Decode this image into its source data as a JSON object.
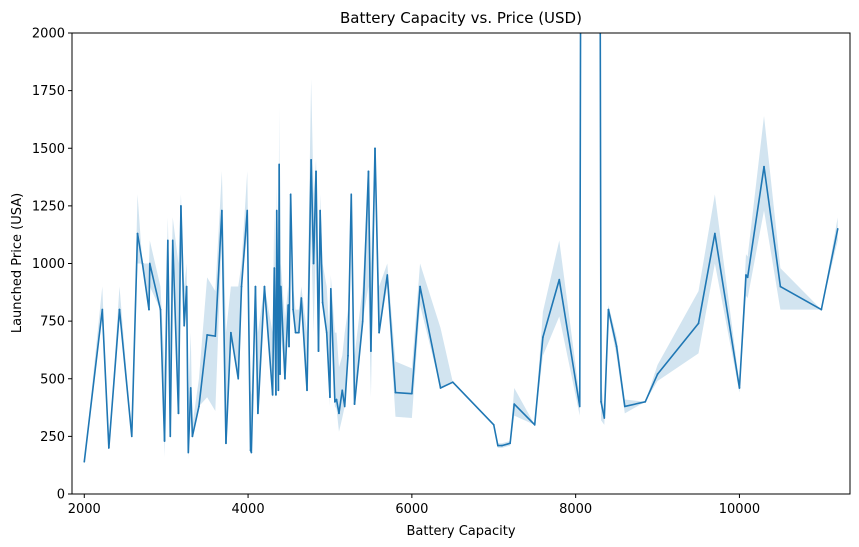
{
  "chart_data": {
    "type": "line",
    "title": "Battery Capacity vs. Price (USD)",
    "xlabel": "Battery Capacity",
    "ylabel": "Launched Price (USA)",
    "xlim": [
      1850,
      11350
    ],
    "ylim": [
      0,
      2000
    ],
    "xticks": [
      2000,
      4000,
      6000,
      8000,
      10000
    ],
    "yticks": [
      0,
      250,
      500,
      750,
      1000,
      1250,
      1500,
      1750,
      2000
    ],
    "grid": false,
    "legend": "none",
    "colors": {
      "line": "#1f77b4",
      "band": "#1f77b4"
    },
    "series": [
      {
        "values": [
          [
            2000,
            140
          ],
          [
            2220,
            800
          ],
          [
            2300,
            200
          ],
          [
            2430,
            800
          ],
          [
            2580,
            250
          ],
          [
            2650,
            1130
          ],
          [
            2710,
            1000
          ],
          [
            2790,
            800
          ],
          [
            2800,
            1000
          ],
          [
            2930,
            800
          ],
          [
            2980,
            230
          ],
          [
            3020,
            1100
          ],
          [
            3050,
            250
          ],
          [
            3080,
            1100
          ],
          [
            3150,
            350
          ],
          [
            3180,
            1250
          ],
          [
            3220,
            730
          ],
          [
            3250,
            900
          ],
          [
            3270,
            180
          ],
          [
            3300,
            460
          ],
          [
            3320,
            250
          ],
          [
            3400,
            380
          ],
          [
            3500,
            690
          ],
          [
            3600,
            685
          ],
          [
            3680,
            1230
          ],
          [
            3730,
            220
          ],
          [
            3790,
            700
          ],
          [
            3880,
            500
          ],
          [
            3920,
            900
          ],
          [
            3990,
            1230
          ],
          [
            4030,
            190
          ],
          [
            4040,
            180
          ],
          [
            4090,
            900
          ],
          [
            4120,
            350
          ],
          [
            4200,
            900
          ],
          [
            4300,
            430
          ],
          [
            4320,
            980
          ],
          [
            4340,
            430
          ],
          [
            4350,
            1230
          ],
          [
            4370,
            450
          ],
          [
            4380,
            1430
          ],
          [
            4390,
            520
          ],
          [
            4400,
            900
          ],
          [
            4450,
            500
          ],
          [
            4490,
            820
          ],
          [
            4500,
            640
          ],
          [
            4520,
            1300
          ],
          [
            4550,
            800
          ],
          [
            4580,
            700
          ],
          [
            4620,
            700
          ],
          [
            4650,
            850
          ],
          [
            4720,
            450
          ],
          [
            4770,
            1450
          ],
          [
            4800,
            1000
          ],
          [
            4830,
            1400
          ],
          [
            4860,
            620
          ],
          [
            4880,
            1230
          ],
          [
            4910,
            830
          ],
          [
            4960,
            700
          ],
          [
            5000,
            420
          ],
          [
            5010,
            890
          ],
          [
            5060,
            400
          ],
          [
            5080,
            410
          ],
          [
            5110,
            350
          ],
          [
            5150,
            450
          ],
          [
            5180,
            380
          ],
          [
            5220,
            600
          ],
          [
            5260,
            1300
          ],
          [
            5300,
            390
          ],
          [
            5400,
            750
          ],
          [
            5470,
            1400
          ],
          [
            5500,
            620
          ],
          [
            5550,
            1500
          ],
          [
            5600,
            700
          ],
          [
            5700,
            950
          ],
          [
            5800,
            440
          ],
          [
            6000,
            435
          ],
          [
            6100,
            900
          ],
          [
            6350,
            460
          ],
          [
            6500,
            485
          ],
          [
            7000,
            300
          ],
          [
            7050,
            210
          ],
          [
            7100,
            210
          ],
          [
            7200,
            220
          ],
          [
            7250,
            390
          ],
          [
            7500,
            300
          ],
          [
            7600,
            680
          ],
          [
            7800,
            930
          ],
          [
            8050,
            380
          ],
          [
            8060,
            2100
          ],
          [
            8300,
            2100
          ],
          [
            8310,
            400
          ],
          [
            8350,
            330
          ],
          [
            8400,
            800
          ],
          [
            8500,
            640
          ],
          [
            8600,
            380
          ],
          [
            8850,
            400
          ],
          [
            9000,
            520
          ],
          [
            9500,
            740
          ],
          [
            9700,
            1130
          ],
          [
            10000,
            460
          ],
          [
            10080,
            950
          ],
          [
            10100,
            940
          ],
          [
            10300,
            1420
          ],
          [
            10500,
            900
          ],
          [
            11000,
            800
          ],
          [
            11200,
            1150
          ]
        ],
        "ci_lower": [
          [
            2000,
            140
          ],
          [
            2220,
            800
          ],
          [
            2300,
            200
          ],
          [
            2430,
            800
          ],
          [
            2580,
            250
          ],
          [
            2650,
            1000
          ],
          [
            2710,
            1000
          ],
          [
            2790,
            800
          ],
          [
            2800,
            900
          ],
          [
            2930,
            800
          ],
          [
            2980,
            160
          ],
          [
            3020,
            1000
          ],
          [
            3050,
            250
          ],
          [
            3080,
            1000
          ],
          [
            3150,
            350
          ],
          [
            3180,
            1150
          ],
          [
            3220,
            730
          ],
          [
            3250,
            900
          ],
          [
            3270,
            150
          ],
          [
            3300,
            460
          ],
          [
            3320,
            250
          ],
          [
            3400,
            380
          ],
          [
            3500,
            420
          ],
          [
            3600,
            360
          ],
          [
            3680,
            1130
          ],
          [
            3730,
            220
          ],
          [
            3790,
            700
          ],
          [
            3880,
            500
          ],
          [
            3920,
            900
          ],
          [
            3990,
            1130
          ],
          [
            4030,
            180
          ],
          [
            4040,
            180
          ],
          [
            4090,
            900
          ],
          [
            4120,
            350
          ],
          [
            4200,
            900
          ],
          [
            4300,
            410
          ],
          [
            4320,
            900
          ],
          [
            4340,
            410
          ],
          [
            4350,
            1000
          ],
          [
            4370,
            420
          ],
          [
            4380,
            1200
          ],
          [
            4390,
            450
          ],
          [
            4400,
            700
          ],
          [
            4450,
            500
          ],
          [
            4490,
            820
          ],
          [
            4500,
            640
          ],
          [
            4520,
            1200
          ],
          [
            4550,
            800
          ],
          [
            4580,
            700
          ],
          [
            4620,
            700
          ],
          [
            4650,
            850
          ],
          [
            4720,
            450
          ],
          [
            4770,
            1130
          ],
          [
            4800,
            700
          ],
          [
            4830,
            1100
          ],
          [
            4860,
            620
          ],
          [
            4880,
            1000
          ],
          [
            4910,
            830
          ],
          [
            4960,
            700
          ],
          [
            5000,
            380
          ],
          [
            5010,
            890
          ],
          [
            5060,
            380
          ],
          [
            5080,
            370
          ],
          [
            5110,
            270
          ],
          [
            5150,
            330
          ],
          [
            5180,
            380
          ],
          [
            5220,
            600
          ],
          [
            5260,
            1250
          ],
          [
            5300,
            390
          ],
          [
            5400,
            750
          ],
          [
            5470,
            900
          ],
          [
            5500,
            420
          ],
          [
            5550,
            1450
          ],
          [
            5600,
            700
          ],
          [
            5700,
            900
          ],
          [
            5800,
            335
          ],
          [
            6000,
            330
          ],
          [
            6100,
            820
          ],
          [
            6350,
            460
          ],
          [
            6500,
            485
          ],
          [
            7000,
            300
          ],
          [
            7050,
            200
          ],
          [
            7100,
            200
          ],
          [
            7200,
            210
          ],
          [
            7250,
            340
          ],
          [
            7500,
            300
          ],
          [
            7600,
            600
          ],
          [
            7800,
            770
          ],
          [
            8050,
            340
          ],
          [
            8060,
            2100
          ],
          [
            8300,
            2100
          ],
          [
            8310,
            320
          ],
          [
            8350,
            300
          ],
          [
            8400,
            780
          ],
          [
            8500,
            600
          ],
          [
            8600,
            350
          ],
          [
            8850,
            400
          ],
          [
            9000,
            490
          ],
          [
            9500,
            610
          ],
          [
            9700,
            1000
          ],
          [
            10000,
            440
          ],
          [
            10080,
            860
          ],
          [
            10100,
            850
          ],
          [
            10300,
            1230
          ],
          [
            10500,
            800
          ],
          [
            11000,
            800
          ],
          [
            11200,
            1100
          ]
        ],
        "ci_upper": [
          [
            2000,
            140
          ],
          [
            2220,
            900
          ],
          [
            2300,
            200
          ],
          [
            2430,
            900
          ],
          [
            2580,
            250
          ],
          [
            2650,
            1300
          ],
          [
            2710,
            1000
          ],
          [
            2790,
            1000
          ],
          [
            2800,
            1100
          ],
          [
            2930,
            900
          ],
          [
            2980,
            550
          ],
          [
            3020,
            1200
          ],
          [
            3050,
            700
          ],
          [
            3080,
            1200
          ],
          [
            3150,
            1000
          ],
          [
            3180,
            1300
          ],
          [
            3220,
            900
          ],
          [
            3250,
            1000
          ],
          [
            3270,
            420
          ],
          [
            3300,
            700
          ],
          [
            3320,
            300
          ],
          [
            3400,
            500
          ],
          [
            3500,
            940
          ],
          [
            3600,
            880
          ],
          [
            3680,
            1400
          ],
          [
            3730,
            700
          ],
          [
            3790,
            900
          ],
          [
            3880,
            900
          ],
          [
            3920,
            1000
          ],
          [
            3990,
            1400
          ],
          [
            4030,
            450
          ],
          [
            4040,
            430
          ],
          [
            4090,
            900
          ],
          [
            4120,
            700
          ],
          [
            4200,
            900
          ],
          [
            4300,
            700
          ],
          [
            4320,
            1230
          ],
          [
            4340,
            700
          ],
          [
            4350,
            1350
          ],
          [
            4370,
            900
          ],
          [
            4380,
            1680
          ],
          [
            4390,
            900
          ],
          [
            4400,
            1000
          ],
          [
            4450,
            760
          ],
          [
            4490,
            900
          ],
          [
            4500,
            800
          ],
          [
            4520,
            1300
          ],
          [
            4550,
            900
          ],
          [
            4580,
            800
          ],
          [
            4620,
            800
          ],
          [
            4650,
            900
          ],
          [
            4720,
            700
          ],
          [
            4770,
            1800
          ],
          [
            4800,
            1300
          ],
          [
            4830,
            1450
          ],
          [
            4860,
            900
          ],
          [
            4880,
            1300
          ],
          [
            4910,
            1000
          ],
          [
            4960,
            900
          ],
          [
            5000,
            650
          ],
          [
            5010,
            950
          ],
          [
            5060,
            700
          ],
          [
            5080,
            700
          ],
          [
            5110,
            550
          ],
          [
            5150,
            600
          ],
          [
            5180,
            700
          ],
          [
            5220,
            800
          ],
          [
            5260,
            1300
          ],
          [
            5300,
            600
          ],
          [
            5400,
            900
          ],
          [
            5470,
            1400
          ],
          [
            5500,
            1000
          ],
          [
            5550,
            1500
          ],
          [
            5600,
            900
          ],
          [
            5700,
            1000
          ],
          [
            5800,
            575
          ],
          [
            6000,
            545
          ],
          [
            6100,
            1000
          ],
          [
            6350,
            720
          ],
          [
            6500,
            485
          ],
          [
            7000,
            300
          ],
          [
            7050,
            220
          ],
          [
            7100,
            220
          ],
          [
            7200,
            230
          ],
          [
            7250,
            460
          ],
          [
            7500,
            300
          ],
          [
            7600,
            790
          ],
          [
            7800,
            1100
          ],
          [
            8050,
            420
          ],
          [
            8060,
            2100
          ],
          [
            8300,
            2100
          ],
          [
            8310,
            480
          ],
          [
            8350,
            360
          ],
          [
            8400,
            820
          ],
          [
            8500,
            680
          ],
          [
            8600,
            410
          ],
          [
            8850,
            400
          ],
          [
            9000,
            560
          ],
          [
            9500,
            880
          ],
          [
            9700,
            1300
          ],
          [
            10000,
            480
          ],
          [
            10080,
            1040
          ],
          [
            10100,
            1030
          ],
          [
            10300,
            1640
          ],
          [
            10500,
            980
          ],
          [
            11000,
            800
          ],
          [
            11200,
            1200
          ]
        ]
      }
    ]
  }
}
